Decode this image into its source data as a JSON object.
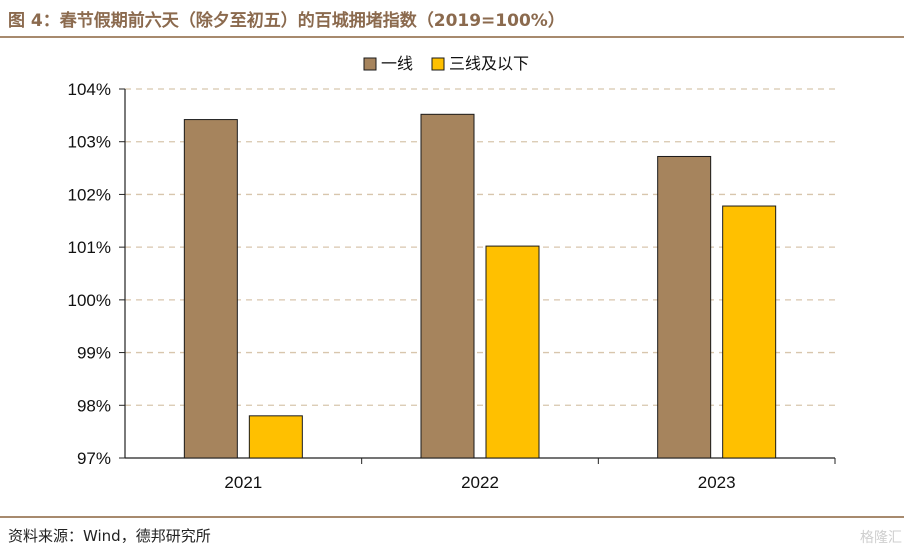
{
  "title": "图 4：春节假期前六天（除夕至初五）的百城拥堵指数（2019=100%）",
  "source": "资料来源：Wind，德邦研究所",
  "watermark": "格隆汇",
  "colors": {
    "series1": "#a6845d",
    "series2": "#ffc000",
    "grid": "#d8c6ad",
    "rule": "#a78a6e",
    "title": "#8b6a4e"
  },
  "chart_data": {
    "type": "bar",
    "categories": [
      "2021",
      "2022",
      "2023"
    ],
    "series": [
      {
        "name": "一线",
        "values": [
          103.42,
          103.52,
          102.72
        ]
      },
      {
        "name": "三线及以下",
        "values": [
          97.8,
          101.02,
          101.78
        ]
      }
    ],
    "ylim": [
      97,
      104
    ],
    "yticks": [
      "97%",
      "98%",
      "99%",
      "100%",
      "101%",
      "102%",
      "103%",
      "104%"
    ],
    "grid": true,
    "legend": "top-center"
  }
}
